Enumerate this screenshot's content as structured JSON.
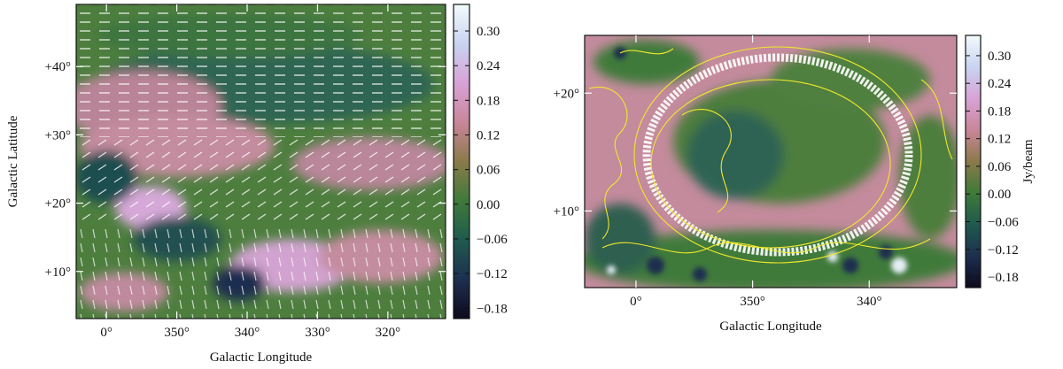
{
  "chart_data": [
    {
      "type": "heatmap",
      "xlabel": "Galactic Longitude",
      "ylabel": "Galactic Latitude",
      "xlim": [
        4.3,
        -48.2
      ],
      "xticks": [
        {
          "value": 0,
          "label": "0°"
        },
        {
          "value": -10,
          "label": "350°"
        },
        {
          "value": -20,
          "label": "340°"
        },
        {
          "value": -30,
          "label": "330°"
        },
        {
          "value": -40,
          "label": "320°"
        }
      ],
      "ylim": [
        3.1,
        49.1
      ],
      "yticks": [
        {
          "value": 10,
          "label": "+10°"
        },
        {
          "value": 20,
          "label": "+20°"
        },
        {
          "value": 30,
          "label": "+30°"
        },
        {
          "value": 40,
          "label": "+40°"
        }
      ],
      "clim": [
        -0.198,
        0.346
      ],
      "cticks": [
        {
          "value": 0.3,
          "label": "0.30"
        },
        0.24,
        0.18,
        0.12,
        0.06,
        {
          "value": 0,
          "label": "0.00"
        },
        {
          "value": -0.06,
          "label": "−0.06"
        },
        {
          "value": -0.12,
          "label": "−0.12"
        },
        {
          "value": -0.18,
          "label": "−0.18"
        }
      ],
      "colormap": [
        "#0d0a1e",
        "#1d2f4f",
        "#1f5a4e",
        "#3f7a3a",
        "#8a7a4a",
        "#c9869a",
        "#d7a3d6",
        "#c9d4f2",
        "#f3fbfb"
      ]
    },
    {
      "type": "heatmap",
      "xlabel": "Galactic Longitude",
      "xlim": [
        4.4,
        -27.5
      ],
      "xticks": [
        {
          "value": 0,
          "label": "0°"
        },
        {
          "value": -10,
          "label": "350°"
        },
        {
          "value": -20,
          "label": "340°"
        }
      ],
      "ylim": [
        3.5,
        24.9
      ],
      "yticks": [
        {
          "value": 10,
          "label": "+10°"
        },
        {
          "value": 20,
          "label": "+20°"
        }
      ],
      "clim": [
        -0.203,
        0.344
      ],
      "cticks": [
        {
          "value": 0.3,
          "label": "0.30"
        },
        0.24,
        0.18,
        0.12,
        0.06,
        {
          "value": 0,
          "label": "0.00"
        },
        {
          "value": -0.06,
          "label": "−0.06"
        },
        {
          "value": -0.12,
          "label": "−0.12"
        },
        {
          "value": -0.18,
          "label": "−0.18"
        }
      ],
      "clabel": "Jy/beam",
      "colormap": [
        "#0d0a1e",
        "#1d2f4f",
        "#1f5a4e",
        "#3f7a3a",
        "#8a7a4a",
        "#c9869a",
        "#d7a3d6",
        "#c9d4f2",
        "#f3fbfb"
      ]
    }
  ]
}
